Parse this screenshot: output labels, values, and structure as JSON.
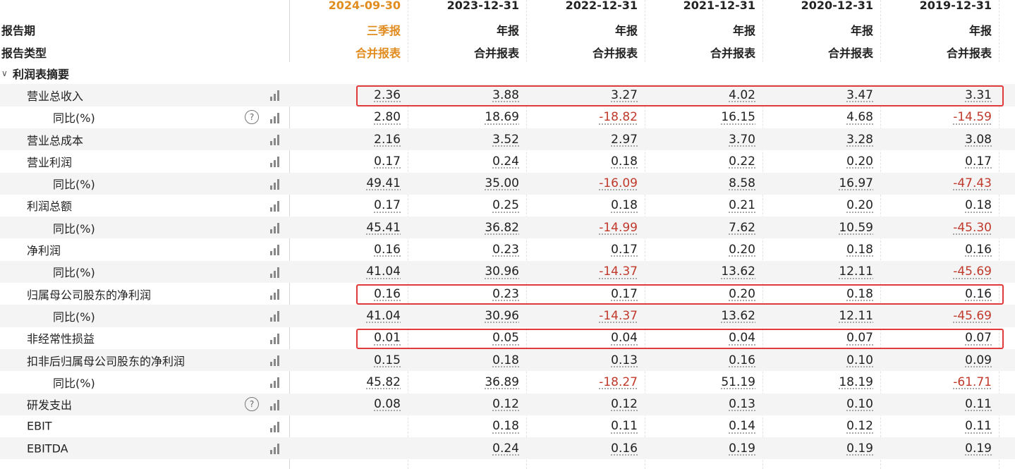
{
  "header": {
    "report_period_label": "报告期",
    "report_type_label": "报告类型",
    "columns": [
      {
        "date": "2024-09-30",
        "period": "三季报",
        "type": "合并报表",
        "current": true
      },
      {
        "date": "2023-12-31",
        "period": "年报",
        "type": "合并报表",
        "current": false
      },
      {
        "date": "2022-12-31",
        "period": "年报",
        "type": "合并报表",
        "current": false
      },
      {
        "date": "2021-12-31",
        "period": "年报",
        "type": "合并报表",
        "current": false
      },
      {
        "date": "2020-12-31",
        "period": "年报",
        "type": "合并报表",
        "current": false
      },
      {
        "date": "2019-12-31",
        "period": "年报",
        "type": "合并报表",
        "current": false
      }
    ],
    "current_color": "#e08c1e"
  },
  "section": {
    "title": "利润表摘要",
    "expanded_icon": "chevron-down-icon"
  },
  "rows": [
    {
      "label": "营业总收入",
      "indent": 1,
      "help": false,
      "values": [
        "2.36",
        "3.88",
        "3.27",
        "4.02",
        "3.47",
        "3.31"
      ]
    },
    {
      "label": "同比(%)",
      "indent": 2,
      "help": true,
      "values": [
        "2.80",
        "18.69",
        "-18.82",
        "16.15",
        "4.68",
        "-14.59"
      ]
    },
    {
      "label": "营业总成本",
      "indent": 1,
      "help": false,
      "values": [
        "2.16",
        "3.52",
        "2.97",
        "3.70",
        "3.28",
        "3.08"
      ]
    },
    {
      "label": "营业利润",
      "indent": 1,
      "help": false,
      "values": [
        "0.17",
        "0.24",
        "0.18",
        "0.22",
        "0.20",
        "0.17"
      ]
    },
    {
      "label": "同比(%)",
      "indent": 2,
      "help": false,
      "values": [
        "49.41",
        "35.00",
        "-16.09",
        "8.58",
        "16.97",
        "-47.43"
      ]
    },
    {
      "label": "利润总额",
      "indent": 1,
      "help": false,
      "values": [
        "0.17",
        "0.25",
        "0.18",
        "0.21",
        "0.20",
        "0.18"
      ]
    },
    {
      "label": "同比(%)",
      "indent": 2,
      "help": false,
      "values": [
        "45.41",
        "36.82",
        "-14.99",
        "7.62",
        "10.59",
        "-45.30"
      ]
    },
    {
      "label": "净利润",
      "indent": 1,
      "help": false,
      "values": [
        "0.16",
        "0.23",
        "0.17",
        "0.20",
        "0.18",
        "0.16"
      ]
    },
    {
      "label": "同比(%)",
      "indent": 2,
      "help": false,
      "values": [
        "41.04",
        "30.96",
        "-14.37",
        "13.62",
        "12.11",
        "-45.69"
      ]
    },
    {
      "label": "归属母公司股东的净利润",
      "indent": 1,
      "help": false,
      "values": [
        "0.16",
        "0.23",
        "0.17",
        "0.20",
        "0.18",
        "0.16"
      ]
    },
    {
      "label": "同比(%)",
      "indent": 2,
      "help": false,
      "values": [
        "41.04",
        "30.96",
        "-14.37",
        "13.62",
        "12.11",
        "-45.69"
      ]
    },
    {
      "label": "非经常性损益",
      "indent": 1,
      "help": false,
      "values": [
        "0.01",
        "0.05",
        "0.04",
        "0.04",
        "0.07",
        "0.07"
      ]
    },
    {
      "label": "扣非后归属母公司股东的净利润",
      "indent": 1,
      "help": false,
      "values": [
        "0.15",
        "0.18",
        "0.13",
        "0.16",
        "0.10",
        "0.09"
      ]
    },
    {
      "label": "同比(%)",
      "indent": 2,
      "help": false,
      "values": [
        "45.82",
        "36.89",
        "-18.27",
        "51.19",
        "18.19",
        "-61.71"
      ]
    },
    {
      "label": "研发支出",
      "indent": 1,
      "help": true,
      "values": [
        "0.08",
        "0.12",
        "0.12",
        "0.13",
        "0.10",
        "0.11"
      ]
    },
    {
      "label": "EBIT",
      "indent": 1,
      "help": false,
      "values": [
        "",
        "0.18",
        "0.11",
        "0.14",
        "0.12",
        "0.11"
      ]
    },
    {
      "label": "EBITDA",
      "indent": 1,
      "help": false,
      "values": [
        "",
        "0.24",
        "0.16",
        "0.19",
        "0.19",
        "0.19"
      ]
    }
  ],
  "highlighted_rows": [
    0,
    9,
    11
  ],
  "colors": {
    "negative": "#c0392b",
    "highlight_border": "#e03a3a",
    "stripe": "#f4f4f4"
  },
  "icons": {
    "chart": "bar-chart-icon",
    "help": "help-circle-icon"
  },
  "help_glyph": "?"
}
